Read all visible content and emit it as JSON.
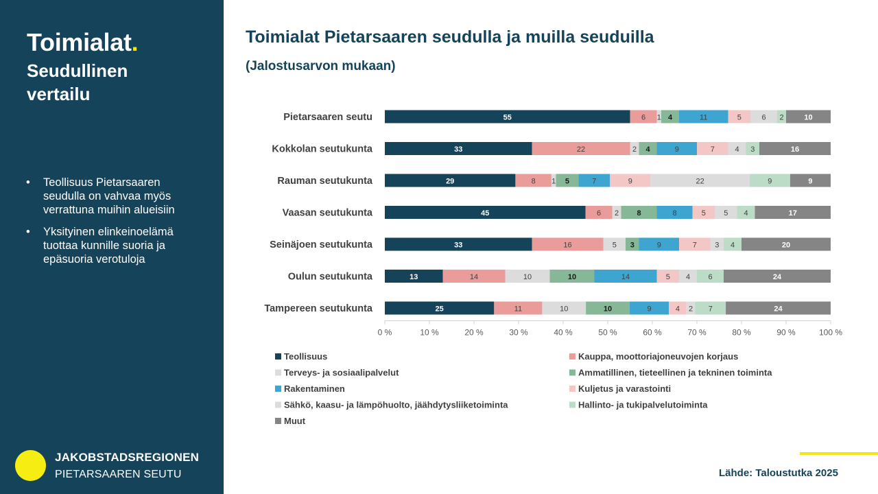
{
  "sidebar": {
    "title": "Toimialat",
    "title_dot": ".",
    "subtitle": "Seudullinen vertailu",
    "bullets": [
      "Teollisuus Pietarsaaren seudulla on vahvaa myös verrattuna muihin alueisiin",
      "Yksityinen elinkeinoelämä tuottaa kunnille suoria ja epäsuoria verotuloja"
    ],
    "logo_line1": "JAKOBSTADSREGIONEN",
    "logo_line2": "PIETARSAAREN SEUTU"
  },
  "main": {
    "title": "Toimialat Pietarsaaren seudulla ja muilla seuduilla",
    "subtitle": "(Jalostusarvon mukaan)",
    "source": "Lähde: Taloustutka 2025"
  },
  "colors": {
    "sidebar_bg": "#15435a",
    "accent_yellow": "#f2e51b",
    "title_text": "#15435a"
  },
  "chart_data": {
    "type": "bar",
    "orientation": "horizontal",
    "stacked": "percent",
    "categories": [
      "Pietarsaaren seutu",
      "Kokkolan seutukunta",
      "Rauman seutukunta",
      "Vaasan seutukunta",
      "Seinäjoen seutukunta",
      "Oulun seutukunta",
      "Tampereen seutukunta"
    ],
    "x_ticks": [
      "0 %",
      "10 %",
      "20 %",
      "30 %",
      "40 %",
      "50 %",
      "60 %",
      "70 %",
      "80 %",
      "90 %",
      "100 %"
    ],
    "xlim": [
      0,
      100
    ],
    "grid": false,
    "legend_position": "bottom",
    "series": [
      {
        "name": "Teollisuus",
        "color": "#15435a",
        "values": [
          55,
          33,
          29,
          45,
          33,
          13,
          25
        ]
      },
      {
        "name": "Kauppa, moottoriajoneuvojen korjaus",
        "color": "#e99c9a",
        "values": [
          6,
          22,
          8,
          6,
          16,
          14,
          11
        ]
      },
      {
        "name": "Terveys- ja sosiaalipalvelut",
        "color": "#dcdcdc",
        "values": [
          1,
          2,
          1,
          2,
          5,
          10,
          10
        ]
      },
      {
        "name": "Ammatillinen, tieteellinen ja tekninen toiminta",
        "color": "#86b797",
        "values": [
          4,
          4,
          5,
          8,
          3,
          10,
          10
        ]
      },
      {
        "name": "Rakentaminen",
        "color": "#3ea4d0",
        "values": [
          11,
          9,
          7,
          8,
          9,
          14,
          9
        ]
      },
      {
        "name": "Kuljetus ja varastointi",
        "color": "#f4c7c7",
        "values": [
          5,
          7,
          9,
          5,
          7,
          5,
          4
        ]
      },
      {
        "name": "Sähkö, kaasu- ja lämpöhuolto, jäähdytysliiketoiminta",
        "color": "#dcdcdc",
        "values": [
          6,
          4,
          22,
          5,
          3,
          4,
          2
        ]
      },
      {
        "name": "Hallinto- ja tukipalvelutoiminta",
        "color": "#bcdcc7",
        "values": [
          2,
          3,
          9,
          4,
          4,
          6,
          7
        ]
      },
      {
        "name": "Muut",
        "color": "#858585",
        "values": [
          10,
          16,
          9,
          17,
          20,
          24,
          24
        ]
      }
    ]
  }
}
